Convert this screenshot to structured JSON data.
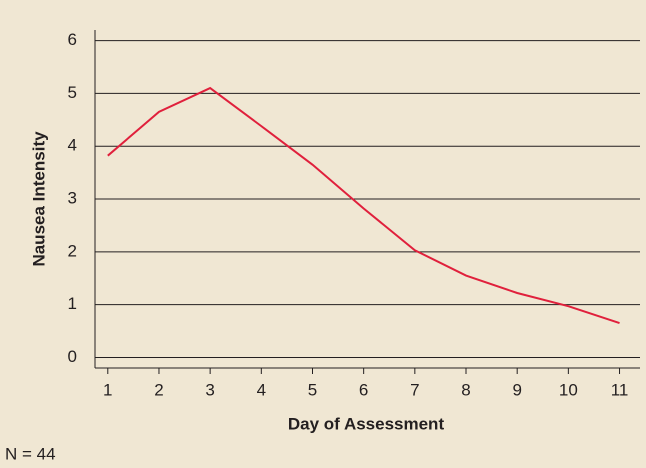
{
  "chart_data": {
    "type": "line",
    "x": [
      1,
      2,
      3,
      4,
      5,
      6,
      7,
      8,
      9,
      10,
      11
    ],
    "series": [
      {
        "name": "Nausea Intensity",
        "color": "#e0203c",
        "values": [
          3.82,
          4.65,
          5.1,
          4.38,
          3.65,
          2.82,
          2.03,
          1.55,
          1.22,
          0.97,
          0.65
        ]
      }
    ],
    "xlabel": "Day of Assessment",
    "ylabel": "Nausea Intensity",
    "xlim": [
      0.75,
      11.4
    ],
    "ylim": [
      -0.2,
      6.2
    ],
    "xticks": [
      1,
      2,
      3,
      4,
      5,
      6,
      7,
      8,
      9,
      10,
      11
    ],
    "yticks": [
      0,
      1,
      2,
      3,
      4,
      5,
      6
    ],
    "grid": true,
    "note": "N = 44"
  }
}
